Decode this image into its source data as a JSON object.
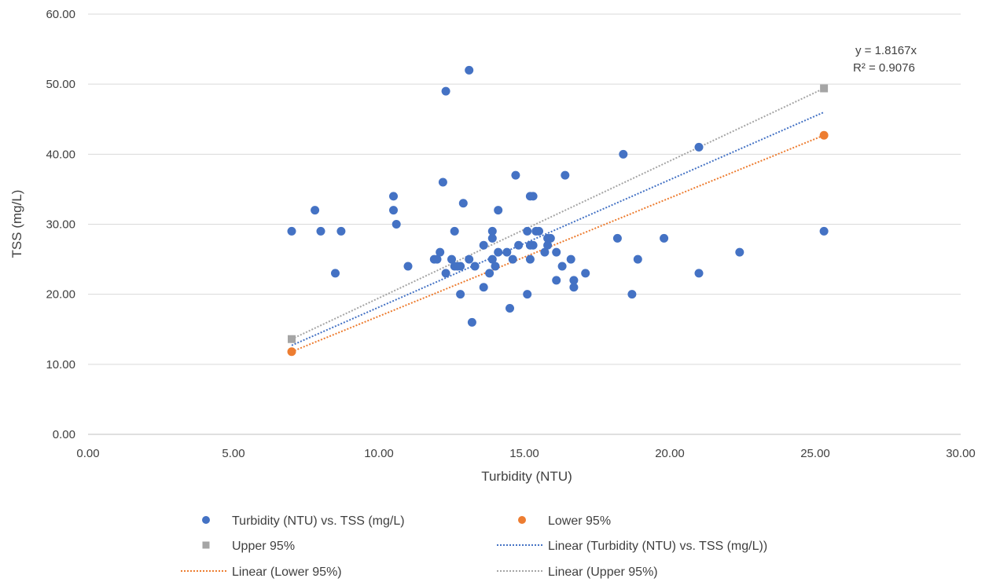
{
  "chart_data": {
    "type": "scatter",
    "xlabel": "Turbidity (NTU)",
    "ylabel": "TSS (mg/L)",
    "xlim": [
      0,
      30
    ],
    "ylim": [
      0,
      60
    ],
    "x_ticks": [
      "0.00",
      "5.00",
      "10.00",
      "15.00",
      "20.00",
      "25.00",
      "30.00"
    ],
    "y_ticks": [
      "0.00",
      "10.00",
      "20.00",
      "30.00",
      "40.00",
      "50.00",
      "60.00"
    ],
    "grid": "horizontal",
    "legend_position": "bottom",
    "series": [
      {
        "name": "Turbidity (NTU) vs. TSS (mg/L)",
        "color": "#4472c4",
        "marker": "circle",
        "points": [
          [
            7.0,
            29
          ],
          [
            7.8,
            32
          ],
          [
            8.0,
            29
          ],
          [
            8.5,
            23
          ],
          [
            8.7,
            29
          ],
          [
            10.5,
            34
          ],
          [
            10.5,
            32
          ],
          [
            10.6,
            30
          ],
          [
            11.0,
            24
          ],
          [
            11.9,
            25
          ],
          [
            12.0,
            25
          ],
          [
            12.1,
            26
          ],
          [
            12.2,
            36
          ],
          [
            12.3,
            23
          ],
          [
            12.3,
            49
          ],
          [
            12.5,
            25
          ],
          [
            12.6,
            29
          ],
          [
            12.6,
            24
          ],
          [
            12.7,
            24
          ],
          [
            12.8,
            20
          ],
          [
            12.8,
            24
          ],
          [
            12.9,
            33
          ],
          [
            13.1,
            25
          ],
          [
            13.1,
            52
          ],
          [
            13.2,
            16
          ],
          [
            13.3,
            24
          ],
          [
            13.6,
            21
          ],
          [
            13.6,
            27
          ],
          [
            13.8,
            23
          ],
          [
            13.9,
            25
          ],
          [
            13.9,
            28
          ],
          [
            13.9,
            29
          ],
          [
            14.0,
            24
          ],
          [
            14.1,
            26
          ],
          [
            14.1,
            32
          ],
          [
            14.4,
            26
          ],
          [
            14.5,
            18
          ],
          [
            14.6,
            25
          ],
          [
            14.7,
            37
          ],
          [
            14.8,
            27
          ],
          [
            15.1,
            20
          ],
          [
            15.1,
            29
          ],
          [
            15.2,
            25
          ],
          [
            15.2,
            27
          ],
          [
            15.2,
            34
          ],
          [
            15.3,
            27
          ],
          [
            15.3,
            34
          ],
          [
            15.4,
            29
          ],
          [
            15.5,
            29
          ],
          [
            15.7,
            26
          ],
          [
            15.8,
            27
          ],
          [
            15.8,
            28
          ],
          [
            15.9,
            28
          ],
          [
            16.1,
            26
          ],
          [
            16.1,
            22
          ],
          [
            16.3,
            24
          ],
          [
            16.4,
            37
          ],
          [
            16.6,
            25
          ],
          [
            16.7,
            21
          ],
          [
            16.7,
            22
          ],
          [
            17.1,
            23
          ],
          [
            18.2,
            28
          ],
          [
            18.4,
            40
          ],
          [
            18.7,
            20
          ],
          [
            18.9,
            25
          ],
          [
            19.8,
            28
          ],
          [
            21.0,
            23
          ],
          [
            21.0,
            41
          ],
          [
            22.4,
            26
          ],
          [
            25.3,
            29
          ]
        ]
      },
      {
        "name": "Lower 95%",
        "color": "#ed7d31",
        "marker": "circle",
        "points": [
          [
            7.0,
            11.8
          ],
          [
            25.3,
            42.7
          ]
        ]
      },
      {
        "name": "Upper 95%",
        "color": "#a5a5a5",
        "marker": "square",
        "points": [
          [
            7.0,
            13.6
          ],
          [
            25.3,
            49.4
          ]
        ]
      }
    ],
    "trendlines": [
      {
        "name": "Linear (Turbidity (NTU) vs. TSS (mg/L))",
        "of_series": "Turbidity (NTU) vs. TSS (mg/L)",
        "color": "#4472c4",
        "x": [
          7.0,
          25.3
        ],
        "y": [
          12.7,
          46.0
        ]
      },
      {
        "name": "Linear (Lower 95%)",
        "of_series": "Lower 95%",
        "color": "#ed7d31",
        "x": [
          7.0,
          25.3
        ],
        "y": [
          11.8,
          42.7
        ]
      },
      {
        "name": "Linear (Upper 95%)",
        "of_series": "Upper 95%",
        "color": "#a5a5a5",
        "x": [
          7.0,
          25.3
        ],
        "y": [
          13.6,
          49.4
        ]
      }
    ],
    "annotations": [
      "y = 1.8167x",
      "R² = 0.9076"
    ],
    "legend": [
      {
        "label": "Turbidity (NTU) vs. TSS (mg/L)",
        "kind": "marker",
        "shape": "circle",
        "color": "#4472c4"
      },
      {
        "label": "Lower 95%",
        "kind": "marker",
        "shape": "circle",
        "color": "#ed7d31"
      },
      {
        "label": "Upper 95%",
        "kind": "marker",
        "shape": "square",
        "color": "#a5a5a5"
      },
      {
        "label": "Linear (Turbidity (NTU) vs. TSS (mg/L))",
        "kind": "line",
        "color": "#4472c4"
      },
      {
        "label": "Linear (Lower 95%)",
        "kind": "line",
        "color": "#ed7d31"
      },
      {
        "label": "Linear (Upper 95%)",
        "kind": "line",
        "color": "#a5a5a5"
      }
    ]
  }
}
